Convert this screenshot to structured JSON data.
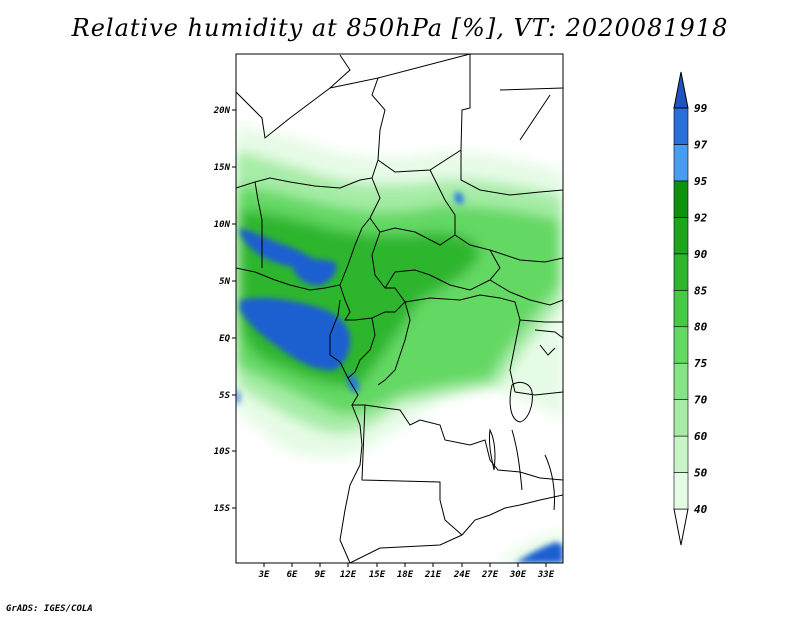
{
  "title": "Relative humidity at 850hPa [%], VT: 2020081918",
  "credit": "GrADS: IGES/COLA",
  "map": {
    "lat_ticks": [
      "20N",
      "15N",
      "10N",
      "5N",
      "EQ",
      "5S",
      "10S",
      "15S"
    ],
    "lon_ticks": [
      "3E",
      "6E",
      "9E",
      "12E",
      "15E",
      "18E",
      "21E",
      "24E",
      "27E",
      "30E",
      "33E"
    ]
  },
  "colorbar": {
    "levels": [
      "40",
      "50",
      "60",
      "70",
      "75",
      "80",
      "85",
      "90",
      "92",
      "95",
      "97",
      "99"
    ],
    "colors": [
      "#ffffff",
      "#e6fbe6",
      "#c8f5c8",
      "#a6eca6",
      "#86e386",
      "#64d864",
      "#46c946",
      "#2eb52e",
      "#1ea51e",
      "#0e920e",
      "#4a9cf0",
      "#2a6fdc",
      "#1f54c0"
    ]
  }
}
